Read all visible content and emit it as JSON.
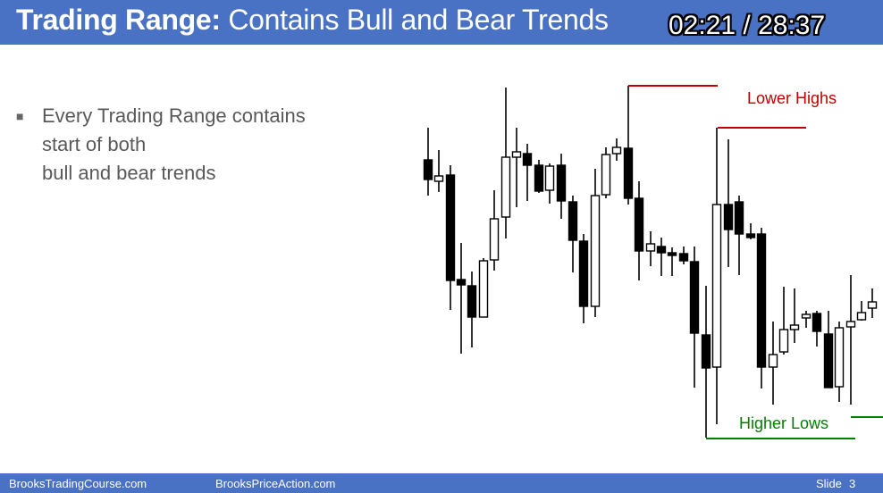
{
  "header": {
    "title_bold": "Trading Range:",
    "title_rest": "Contains Bull and Bear Trends",
    "timer": "02:21 / 28:37"
  },
  "content": {
    "bullet_lines": [
      "Every Trading Range contains",
      "start of both",
      "bull and bear trends"
    ]
  },
  "chart_annotations": {
    "lower_highs": "Lower Highs",
    "higher_lows": "Higher Lows",
    "lower_highs_color": "#c00000",
    "higher_lows_color": "#008000"
  },
  "footer": {
    "left": "BrooksTradingCourse.com",
    "middle": "BrooksPriceAction.com",
    "slide": "Slide",
    "slide_number": "3"
  },
  "colors": {
    "header_bg": "#4a72c4",
    "footer_bg": "#4a72c4",
    "bear_candle": "#000000",
    "bull_candle": "#ffffff"
  }
}
